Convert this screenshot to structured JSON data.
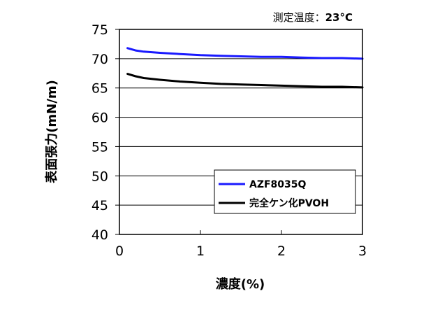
{
  "chart_data": {
    "type": "line",
    "xlabel": "濃度(%)",
    "ylabel": "表面張力(mN/m)",
    "annotation_prefix": "測定温度：",
    "annotation_value": "23°C",
    "xlim": [
      0,
      3
    ],
    "ylim": [
      40,
      75
    ],
    "xticks": [
      0,
      1,
      2,
      3
    ],
    "yticks": [
      40,
      45,
      50,
      55,
      60,
      65,
      70,
      75
    ],
    "xtick_labels": [
      "0",
      "1",
      "2",
      "3"
    ],
    "ytick_labels": [
      "40",
      "45",
      "50",
      "55",
      "60",
      "65",
      "70",
      "75"
    ],
    "grid": {
      "horizontal": true,
      "vertical": false
    },
    "legend_position": "lower-right",
    "series": [
      {
        "name": "AZF8035Q",
        "color": "#1a1aff",
        "x": [
          0.1,
          0.2,
          0.3,
          0.5,
          0.75,
          1.0,
          1.25,
          1.5,
          1.75,
          2.0,
          2.25,
          2.5,
          2.75,
          3.0
        ],
        "y": [
          71.8,
          71.4,
          71.2,
          71.0,
          70.8,
          70.6,
          70.5,
          70.4,
          70.3,
          70.3,
          70.2,
          70.1,
          70.1,
          70.0
        ]
      },
      {
        "name": "完全ケン化PVOH",
        "color": "#000000",
        "x": [
          0.1,
          0.2,
          0.3,
          0.5,
          0.75,
          1.0,
          1.25,
          1.5,
          1.75,
          2.0,
          2.25,
          2.5,
          2.75,
          3.0
        ],
        "y": [
          67.4,
          67.0,
          66.7,
          66.4,
          66.1,
          65.9,
          65.7,
          65.6,
          65.5,
          65.4,
          65.3,
          65.2,
          65.2,
          65.1
        ]
      }
    ]
  }
}
